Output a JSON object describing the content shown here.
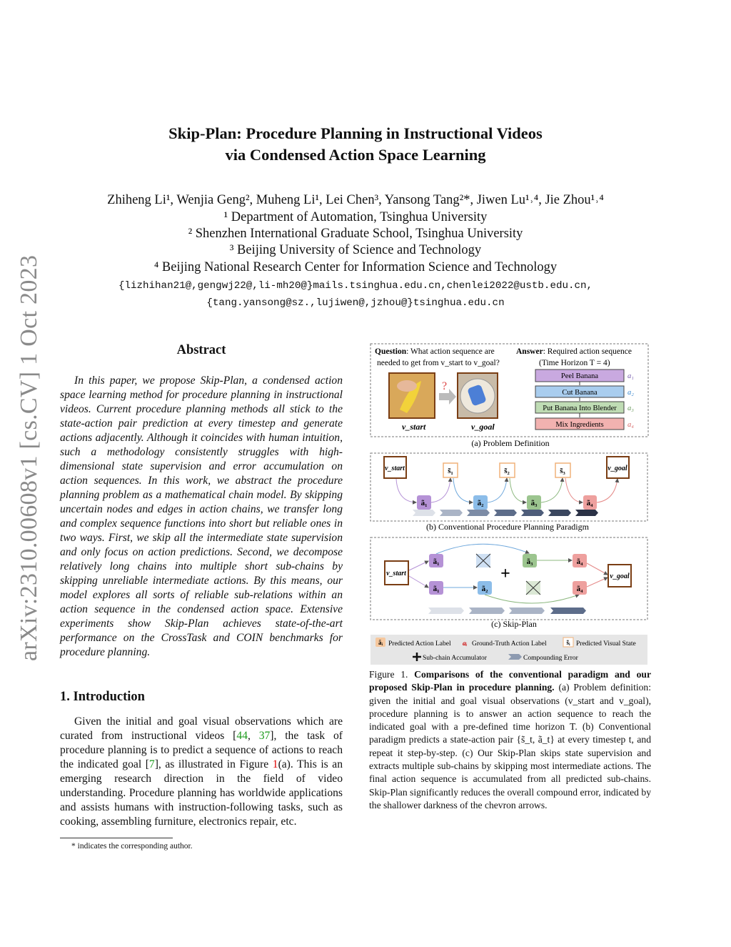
{
  "sidebar": {
    "arxiv_id": "arXiv:2310.00608v1  [cs.CV]  1 Oct 2023"
  },
  "title": {
    "line1": "Skip-Plan: Procedure Planning in Instructional Videos",
    "line2": "via Condensed Action Space Learning"
  },
  "authors": "Zhiheng Li¹, Wenjia Geng², Muheng Li¹, Lei Chen³, Yansong Tang²*, Jiwen Lu¹˒⁴, Jie Zhou¹˒⁴",
  "affiliations": [
    "¹ Department of Automation, Tsinghua University",
    "² Shenzhen International Graduate School, Tsinghua University",
    "³ Beijing University of Science and Technology",
    "⁴ Beijing National Research Center for Information Science and Technology"
  ],
  "emails": [
    "{lizhihan21@,gengwj22@,li-mh20@}mails.tsinghua.edu.cn,chenlei2022@ustb.edu.cn,",
    "{tang.yansong@sz.,lujiwen@,jzhou@}tsinghua.edu.cn"
  ],
  "abstract": {
    "heading": "Abstract",
    "text": "In this paper, we propose Skip-Plan, a condensed action space learning method for procedure planning in instructional videos. Current procedure planning methods all stick to the state-action pair prediction at every timestep and generate actions adjacently. Although it coincides with human intuition, such a methodology consistently struggles with high-dimensional state supervision and error accumulation on action sequences. In this work, we abstract the procedure planning problem as a mathematical chain model. By skipping uncertain nodes and edges in action chains, we transfer long and complex sequence functions into short but reliable ones in two ways. First, we skip all the intermediate state supervision and only focus on action predictions. Second, we decompose relatively long chains into multiple short sub-chains by skipping unreliable intermediate actions. By this means, our model explores all sorts of reliable sub-relations within an action sequence in the condensed action space. Extensive experiments show Skip-Plan achieves state-of-the-art performance on the CrossTask and COIN benchmarks for procedure planning."
  },
  "intro": {
    "heading": "1. Introduction",
    "p1": "Given the initial and goal visual observations which are curated from instructional videos [",
    "r1": "44",
    "c1": ", ",
    "r2": "37",
    "p2": "], the task of procedure planning is to predict a sequence of actions to reach the indicated goal [",
    "r3": "7",
    "p3": "], as illustrated in Figure ",
    "r4": "1",
    "p4": "(a). This is an emerging research direction in the field of video understanding. Procedure planning has worldwide applications and assists humans with instruction-following tasks, such as cooking, assembling furniture, electronics repair, etc."
  },
  "footnote": "* indicates the corresponding author.",
  "figure": {
    "a": {
      "question_bold": "Question",
      "question1": ": What action sequence are",
      "question2": "needed to get from v_start to v_goal?",
      "answer_bold": "Answer",
      "answer1": ": Required action sequence",
      "answer2": "(Time Horizon T = 4)",
      "qmark": "?",
      "v_start": "v_start",
      "v_goal": "v_goal",
      "actions": [
        {
          "label": "Peel Banana",
          "tag": "a₁",
          "color": "#c9a9e0",
          "tagcolor": "#7a5fb0"
        },
        {
          "label": "Cut Banana",
          "tag": "a₂",
          "color": "#a9cdee",
          "tagcolor": "#3c8ad0"
        },
        {
          "label": "Put Banana Into Blender",
          "tag": "a₃",
          "color": "#bfdcb4",
          "tagcolor": "#6a9a5e"
        },
        {
          "label": "Mix Ingredients",
          "tag": "a₄",
          "color": "#f2b2b0",
          "tagcolor": "#d86a6a"
        }
      ],
      "caption": "(a) Problem Definition"
    },
    "b": {
      "caption": "(b) Conventional Procedure Planning Paradigm",
      "states": [
        "s̃₁",
        "s̃₂",
        "s̃₃"
      ],
      "actions": [
        "ã₁",
        "ã₂",
        "ã₃",
        "ã₄"
      ]
    },
    "c": {
      "caption": "(c) Skip-Plan",
      "plus": "+"
    },
    "legend": {
      "pred_action_sym": "ãᵢ",
      "pred_action": "Predicted Action Label",
      "gt_action_sym": "aᵢ",
      "gt_action": "Ground-Truth Action Label",
      "pred_state_sym": "s̃ᵢ",
      "pred_state": "Predicted Visual State",
      "accumulator": "Sub-chain Accumulator",
      "compounding": "Compounding Error"
    },
    "colors": {
      "purple": "#b592d6",
      "blue": "#8cbde9",
      "green": "#9cc58f",
      "red": "#eea09e",
      "frame": "#7a3e14",
      "state": "#f0b27a"
    }
  },
  "caption": {
    "label": "Figure 1.",
    "bold": "Comparisons of the conventional paradigm and our proposed Skip-Plan in procedure planning.",
    "text": " (a) Problem definition: given the initial and goal visual observations (v_start and v_goal), procedure planning is to answer an action sequence to reach the indicated goal with a pre-defined time horizon T. (b) Conventional paradigm predicts a state-action pair {s̃_t, ã_t} at every timestep t, and repeat it step-by-step. (c) Our Skip-Plan skips state supervision and extracts multiple sub-chains by skipping most intermediate actions. The final action sequence is accumulated from all predicted sub-chains. Skip-Plan significantly reduces the overall compound error, indicated by the shallower darkness of the chevron arrows."
  }
}
